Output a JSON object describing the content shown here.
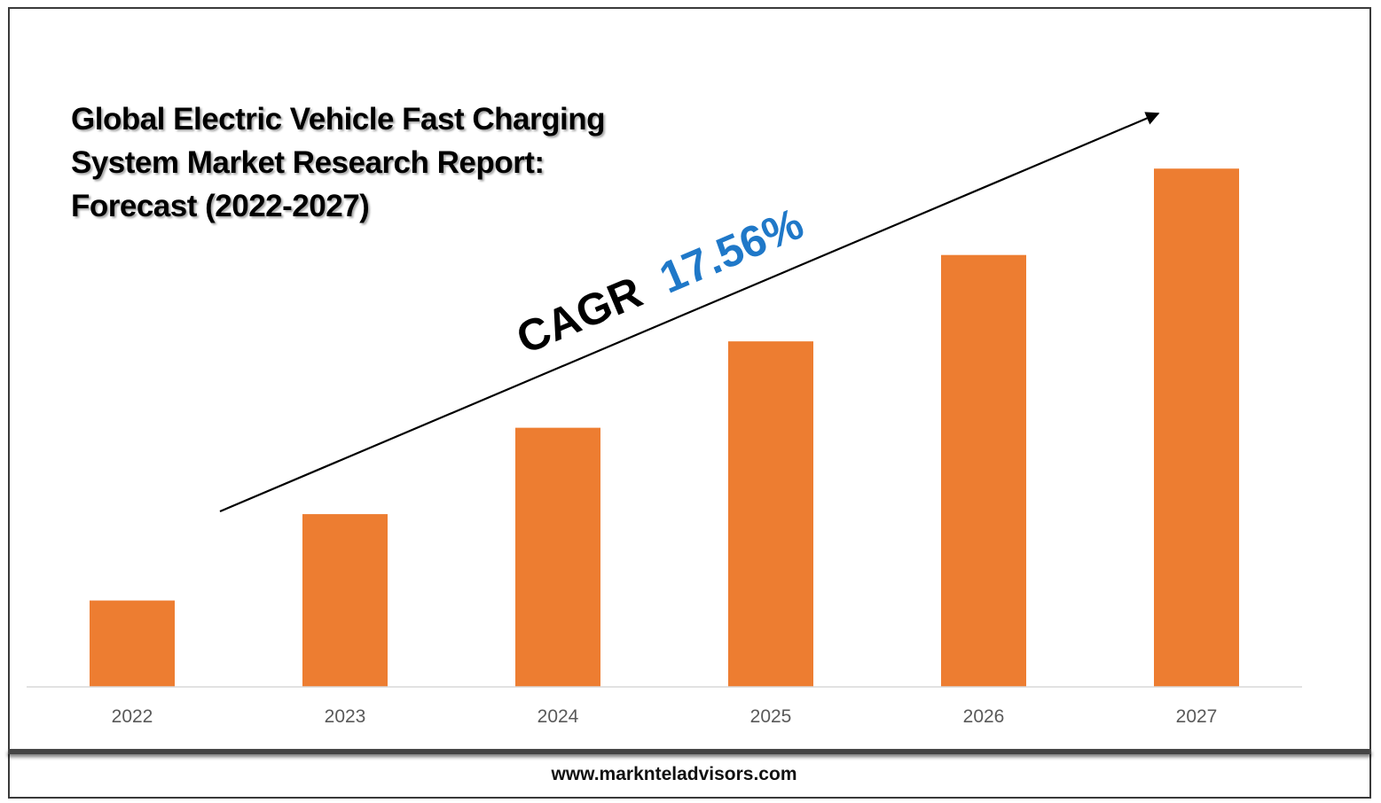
{
  "chart_data": {
    "type": "bar",
    "title": "Global Electric Vehicle Fast Charging System Market Research Report: Forecast (2022-2027)",
    "categories": [
      "2022",
      "2023",
      "2024",
      "2025",
      "2026",
      "2027"
    ],
    "values": [
      1,
      2,
      3,
      4,
      5,
      6
    ],
    "ylim": [
      0,
      6.3
    ],
    "bar_color": "#ED7D31",
    "grid": false,
    "annotation": {
      "prefix": "CAGR",
      "value": "17.56%",
      "value_color": "#1F78C8"
    }
  },
  "footer": {
    "url": "www.marknteladvisors.com"
  }
}
